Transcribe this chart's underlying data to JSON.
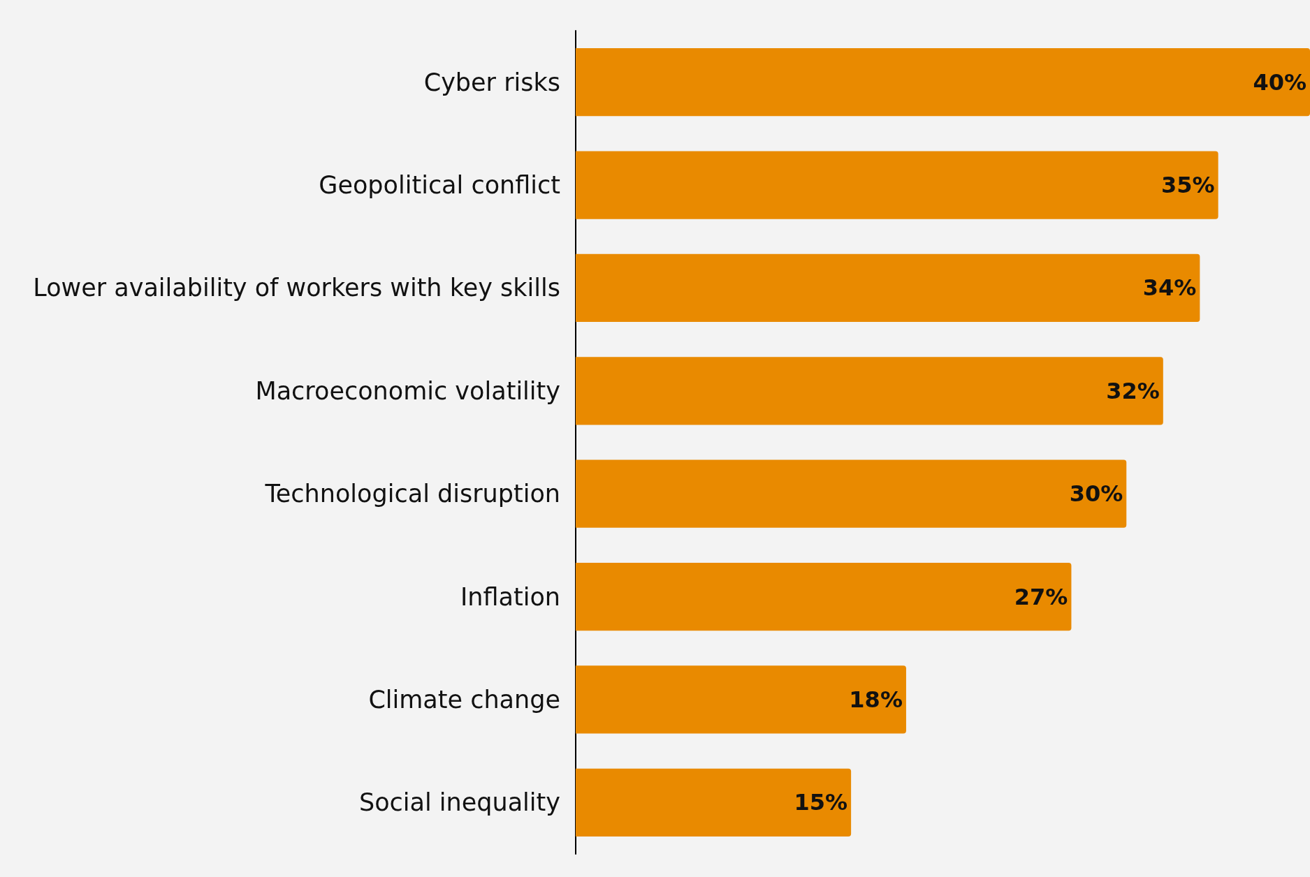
{
  "chart_data": {
    "type": "bar",
    "orientation": "horizontal",
    "categories": [
      "Cyber risks",
      "Geopolitical conflict",
      "Lower availability of workers with key skills",
      "Macroeconomic volatility",
      "Technological disruption",
      "Inflation",
      "Climate change",
      "Social inequality"
    ],
    "values": [
      40,
      35,
      34,
      32,
      30,
      27,
      18,
      15
    ],
    "value_labels": [
      "40%",
      "35%",
      "34%",
      "32%",
      "30%",
      "27%",
      "18%",
      "15%"
    ],
    "color": "#e98a00",
    "xlim": [
      0,
      40
    ],
    "tick_labels": "y"
  }
}
